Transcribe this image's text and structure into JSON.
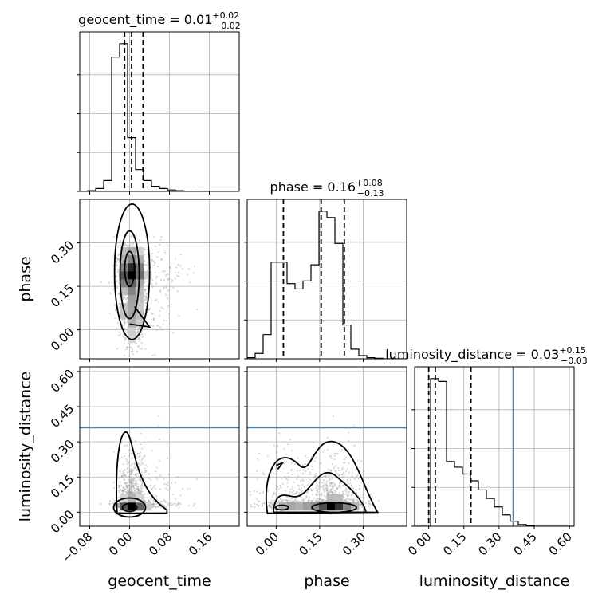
{
  "chart_data": {
    "type": "corner",
    "colors": {
      "line": "#000000",
      "truth": "#4682b4",
      "grid": "#b0b0b0",
      "scatter": "#8c8c8c"
    },
    "params": [
      {
        "name": "geocent_time",
        "range": [
          -0.1,
          0.22
        ],
        "ticks": [
          -0.08,
          0.0,
          0.08,
          0.16
        ],
        "tick_labels": [
          "−0.08",
          "0.00",
          "0.08",
          "0.16"
        ]
      },
      {
        "name": "phase",
        "range": [
          -0.1,
          0.45
        ],
        "ticks": [
          0.0,
          0.15,
          0.3
        ],
        "tick_labels": [
          "0.00",
          "0.15",
          "0.30"
        ]
      },
      {
        "name": "luminosity_distance",
        "range": [
          -0.06,
          0.62
        ],
        "ticks": [
          0.0,
          0.15,
          0.3,
          0.45,
          0.6
        ],
        "tick_labels": [
          "0.00",
          "0.15",
          "0.30",
          "0.45",
          "0.60"
        ]
      }
    ],
    "titles": [
      {
        "prefix": "geocent_time = 0.01",
        "sup": "+0.02",
        "sub": "−0.02"
      },
      {
        "prefix": "phase = 0.16",
        "sup": "+0.08",
        "sub": "−0.13"
      },
      {
        "prefix": "luminosity_distance = 0.03",
        "sup": "+0.15",
        "sub": "−0.03"
      }
    ],
    "quantiles": [
      [
        -0.01,
        0.004,
        0.027
      ],
      [
        0.025,
        0.155,
        0.235
      ],
      [
        0.0,
        0.028,
        0.18
      ]
    ],
    "truths": [
      null,
      null,
      0.36
    ],
    "histograms": [
      {
        "x0": -0.1,
        "bin": 0.016,
        "counts": [
          0,
          2,
          8,
          30,
          370,
          407,
          148,
          60,
          30,
          14,
          8,
          4,
          2,
          1,
          0,
          0,
          0,
          0,
          0,
          0
        ]
      },
      {
        "x0": -0.1,
        "bin": 0.0275,
        "counts": [
          2,
          10,
          45,
          180,
          180,
          140,
          130,
          145,
          175,
          275,
          263,
          215,
          63,
          18,
          6,
          2,
          1,
          0,
          0,
          0
        ]
      },
      {
        "x0": -0.06,
        "bin": 0.034,
        "counts": [
          0,
          0,
          260,
          255,
          114,
          104,
          92,
          80,
          64,
          49,
          34,
          20,
          9,
          3,
          1,
          0,
          0,
          0,
          0,
          0
        ]
      }
    ],
    "scatter_seed": 7
  }
}
